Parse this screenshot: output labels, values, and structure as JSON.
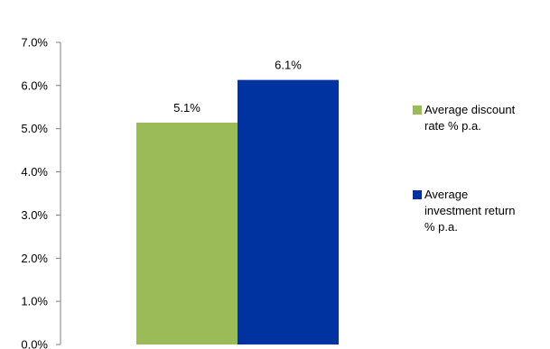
{
  "chart_data": {
    "type": "bar",
    "title": "",
    "xlabel": "",
    "ylabel": "",
    "categories": [
      ""
    ],
    "ylim": [
      0,
      7
    ],
    "ytick_values": [
      0,
      1,
      2,
      3,
      4,
      5,
      6,
      7
    ],
    "ytick_labels": [
      "0.0%",
      "1.0%",
      "2.0%",
      "3.0%",
      "4.0%",
      "5.0%",
      "6.0%",
      "7.0%"
    ],
    "grid": false,
    "legend_position": "right",
    "series": [
      {
        "name": "Average discount rate % p.a.",
        "legend_lines": [
          "Average discount",
          "rate % p.a."
        ],
        "values": [
          5.14
        ],
        "data_labels": [
          "5.1%"
        ],
        "color": "#9bbb59"
      },
      {
        "name": "Average investment return % p.a.",
        "legend_lines": [
          "Average",
          "investment return",
          "% p.a."
        ],
        "values": [
          6.13
        ],
        "data_labels": [
          "6.1%"
        ],
        "color": "#0033a0"
      }
    ]
  }
}
